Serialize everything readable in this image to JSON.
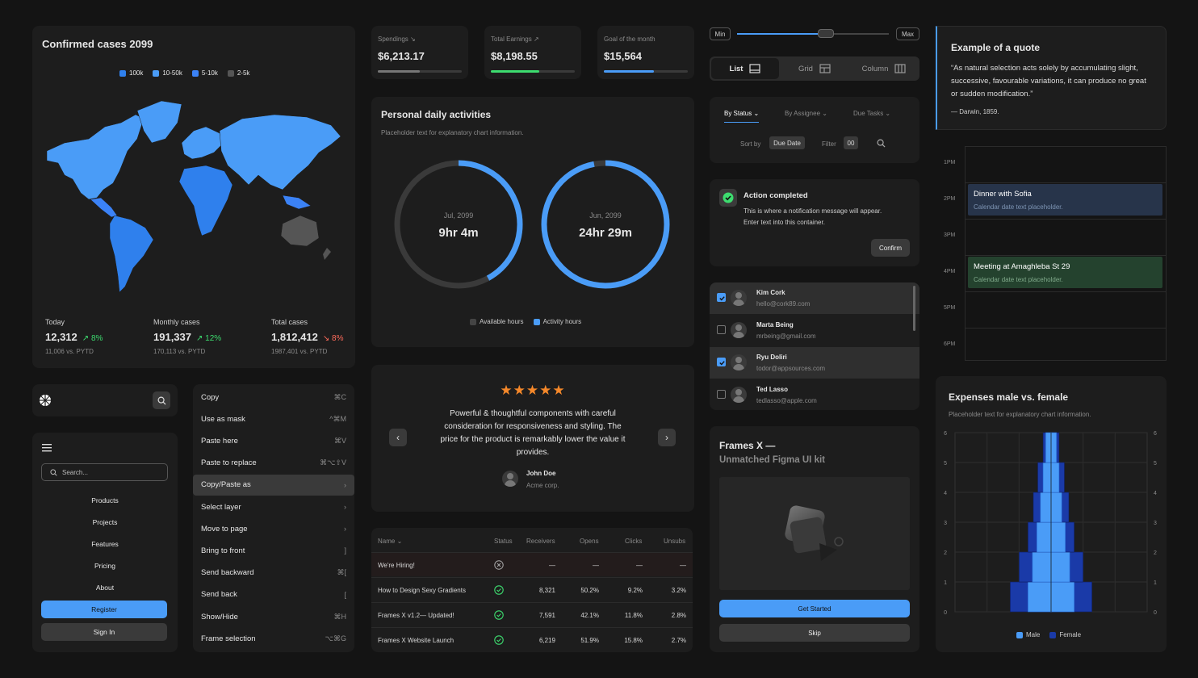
{
  "map": {
    "title": "Confirmed cases 2099",
    "legend": [
      {
        "label": "100k",
        "color": "#2f80ed"
      },
      {
        "label": "10-50k",
        "color": "#4a9cf7"
      },
      {
        "label": "5-10k",
        "color": "#3b82f6"
      },
      {
        "label": "2-5k",
        "color": "#555555"
      }
    ],
    "stats": [
      {
        "label": "Today",
        "value": "12,312",
        "change": "8%",
        "dir": "up",
        "sub": "11,006 vs. PYTD"
      },
      {
        "label": "Monthly cases",
        "value": "191,337",
        "change": "12%",
        "dir": "up",
        "sub": "170,113 vs. PYTD"
      },
      {
        "label": "Total cases",
        "value": "1,812,412",
        "change": "8%",
        "dir": "down",
        "sub": "1987,401 vs. PYTD"
      }
    ]
  },
  "kpis": [
    {
      "label": "Spendings",
      "value": "$6,213.17",
      "progress": 0.5,
      "color": "#777777",
      "arrow": "↘"
    },
    {
      "label": "Total Earnings",
      "value": "$8,198.55",
      "progress": 0.55,
      "color": "#3ddc6f",
      "arrow": "↗"
    },
    {
      "label": "Goal of the month",
      "value": "$15,564",
      "progress": 0.6,
      "color": "#4a9cf7",
      "arrow": ""
    }
  ],
  "activities": {
    "title": "Personal daily activities",
    "subtitle": "Placeholder text for explanatory chart information.",
    "rings": [
      {
        "date": "Jul, 2099",
        "value": "9hr 4m",
        "fraction": 0.42
      },
      {
        "date": "Jun, 2099",
        "value": "24hr 29m",
        "fraction": 0.97
      }
    ],
    "legend": [
      "Available hours",
      "Activity hours"
    ]
  },
  "testimonial": {
    "stars": "★★★★★",
    "text": "Powerful & thoughtful components with careful consideration for responsiveness and styling. The price for the product is remarkably lower the value it provides.",
    "name": "John Doe",
    "company": "Acme corp."
  },
  "table": {
    "headers": [
      "Name",
      "Status",
      "Receivers",
      "Opens",
      "Clicks",
      "Unsubs"
    ],
    "rows": [
      {
        "name": "We're Hiring!",
        "status": "x",
        "receivers": "—",
        "opens": "—",
        "clicks": "—",
        "unsubs": "—"
      },
      {
        "name": "How to Design Sexy Gradients",
        "status": "ok",
        "receivers": "8,321",
        "opens": "50.2%",
        "clicks": "9.2%",
        "unsubs": "3.2%"
      },
      {
        "name": "Frames X v1.2— Updated!",
        "status": "ok",
        "receivers": "7,591",
        "opens": "42.1%",
        "clicks": "11.8%",
        "unsubs": "2.8%"
      },
      {
        "name": "Frames X Website Launch",
        "status": "ok",
        "receivers": "6,219",
        "opens": "51.9%",
        "clicks": "15.8%",
        "unsubs": "2.7%"
      }
    ]
  },
  "slider": {
    "min": "Min",
    "max": "Max",
    "value": 0.53
  },
  "viewSwitch": [
    "List",
    "Grid",
    "Column"
  ],
  "filters": {
    "tabs": [
      "By Status",
      "By Assignee",
      "Due Tasks"
    ],
    "sortLabel": "Sort by",
    "sortValue": "Due Date",
    "filterLabel": "Filter",
    "filterValue": "00"
  },
  "notification": {
    "title": "Action completed",
    "text": "This is where a notification message will appear. Enter text into this container.",
    "button": "Confirm"
  },
  "users": [
    {
      "name": "Kim Cork",
      "email": "hello@cork89.com",
      "checked": true
    },
    {
      "name": "Marta Being",
      "email": "mrbeing@gmail.com",
      "checked": false
    },
    {
      "name": "Ryu Doliri",
      "email": "todor@appsources.com",
      "checked": true
    },
    {
      "name": "Ted Lasso",
      "email": "tedlasso@apple.com",
      "checked": false
    }
  ],
  "promo": {
    "title": "Frames X —",
    "subtitle": "Unmatched Figma UI kit",
    "primary": "Get Started",
    "secondary": "Skip"
  },
  "quote": {
    "title": "Example of a quote",
    "text": "“As natural selection acts solely by accumulating slight, successive, favourable variations, it can produce no great or sudden modification.”",
    "author": "— Darwin, 1859."
  },
  "calendar": {
    "hours": [
      "1PM",
      "2PM",
      "3PM",
      "4PM",
      "5PM",
      "6PM"
    ],
    "events": [
      {
        "title": "Dinner with Sofia",
        "sub": "Calendar date text placeholder.",
        "color": "#27344a"
      },
      {
        "title": "Meeting at Amaghleba St 29",
        "sub": "Calendar date text placeholder.",
        "color": "#24422e"
      }
    ]
  },
  "contextMenu": [
    {
      "label": "Copy",
      "shortcut": "⌘C"
    },
    {
      "label": "Use as mask",
      "shortcut": "^⌘M"
    },
    {
      "label": "Paste here",
      "shortcut": "⌘V"
    },
    {
      "label": "Paste to replace",
      "shortcut": "⌘⌥⇧V"
    },
    {
      "label": "Copy/Paste as",
      "shortcut": "›",
      "active": true
    },
    {
      "label": "Select layer",
      "shortcut": "›"
    },
    {
      "label": "Move to page",
      "shortcut": "›"
    },
    {
      "label": "Bring to front",
      "shortcut": "]"
    },
    {
      "label": "Send backward",
      "shortcut": "⌘["
    },
    {
      "label": "Send back",
      "shortcut": "["
    },
    {
      "label": "Show/Hide",
      "shortcut": "⌘H"
    },
    {
      "label": "Frame selection",
      "shortcut": "⌥⌘G"
    }
  ],
  "sideNav": {
    "searchPlaceholder": "Search...",
    "items": [
      "Products",
      "Projects",
      "Features",
      "Pricing",
      "About"
    ],
    "register": "Register",
    "signin": "Sign In"
  },
  "chart_data": {
    "type": "bar",
    "title": "Expenses male vs. female",
    "subtitle": "Placeholder text for explanatory chart information.",
    "y_ticks": [
      "0",
      "1",
      "2",
      "3",
      "4",
      "5",
      "6"
    ],
    "ylim": [
      0,
      6
    ],
    "legend": [
      "Male",
      "Female"
    ],
    "colors": {
      "Male": "#4a9cf7",
      "Female": "#1a3aa8"
    },
    "series": [
      {
        "name": "Male",
        "values": [
          1.3,
          1.05,
          0.8,
          0.6,
          0.45,
          0.3
        ]
      },
      {
        "name": "Female",
        "values": [
          2.3,
          1.8,
          1.3,
          1.0,
          0.75,
          0.45
        ]
      }
    ]
  }
}
